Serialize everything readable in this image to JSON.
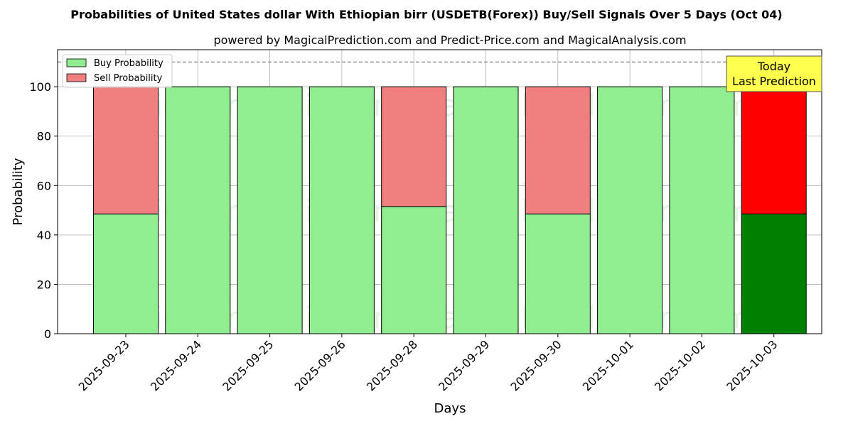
{
  "chart_data": {
    "type": "bar",
    "stacked": true,
    "title": "Probabilities of United States dollar With Ethiopian birr (USDETB(Forex)) Buy/Sell Signals Over 5 Days (Oct 04)",
    "subtitle": "powered by MagicalPrediction.com and Predict-Price.com and MagicalAnalysis.com",
    "xlabel": "Days",
    "ylabel": "Probability",
    "ylim": [
      0,
      115
    ],
    "yticks": [
      0,
      20,
      40,
      60,
      80,
      100
    ],
    "grid": true,
    "reference_line": 110,
    "categories": [
      "2025-09-23",
      "2025-09-24",
      "2025-09-25",
      "2025-09-26",
      "2025-09-28",
      "2025-09-29",
      "2025-09-30",
      "2025-10-01",
      "2025-10-02",
      "2025-10-03"
    ],
    "series": [
      {
        "name": "Buy Probability",
        "color": "#90ee90",
        "values": [
          48.5,
          100,
          100,
          100,
          51.5,
          100,
          48.5,
          100,
          100,
          48.5
        ]
      },
      {
        "name": "Sell Probability",
        "color": "#f08080",
        "values": [
          51.5,
          0,
          0,
          0,
          48.5,
          0,
          51.5,
          0,
          0,
          51.5
        ]
      }
    ],
    "highlight": {
      "index": 9,
      "buy_color": "#008000",
      "sell_color": "#ff0000"
    },
    "legend_position": "top-left",
    "annotation": {
      "line1": "Today",
      "line2": "Last Prediction",
      "color": "#ffff4d"
    },
    "watermarks": [
      "MagicalAnalysis.com",
      "MagicalPrediction.com"
    ]
  }
}
